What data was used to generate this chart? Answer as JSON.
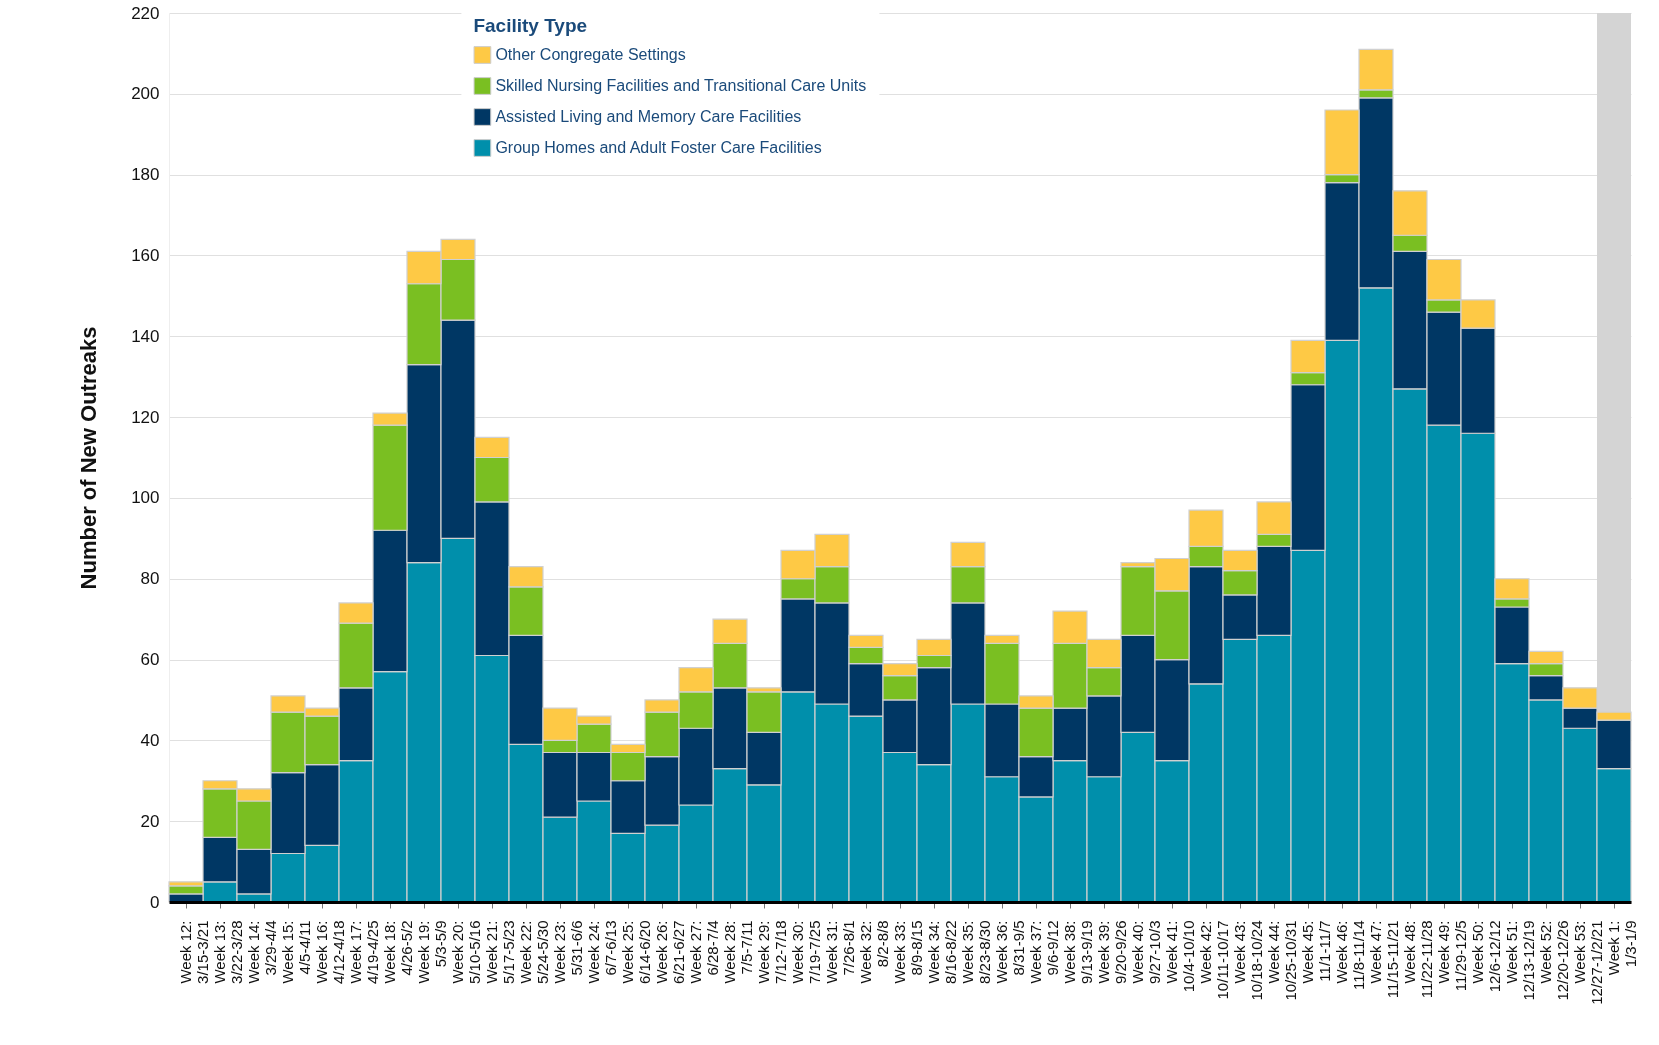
{
  "chart_data": {
    "type": "bar",
    "stacked": true,
    "ylabel": "Number of New Outreaks",
    "legend_title": "Facility Type",
    "categories": [
      "Week 12: 3/15-3/21",
      "Week 13: 3/22-3/28",
      "Week 14: 3/29-4/4",
      "Week 15: 4/5-4/11",
      "Week 16: 4/12-4/18",
      "Week 17: 4/19-4/25",
      "Week 18: 4/26-5/2",
      "Week 19: 5/3-5/9",
      "Week 20: 5/10-5/16",
      "Week 21: 5/17-5/23",
      "Week 22: 5/24-5/30",
      "Week 23: 5/31-6/6",
      "Week 24: 6/7-6/13",
      "Week 25: 6/14-6/20",
      "Week 26: 6/21-6/27",
      "Week 27: 6/28-7/4",
      "Week 28: 7/5-7/11",
      "Week 29: 7/12-7/18",
      "Week 30: 7/19-7/25",
      "Week 31: 7/26-8/1",
      "Week 32: 8/2-8/8",
      "Week 33: 8/9-8/15",
      "Week 34: 8/16-8/22",
      "Week 35: 8/23-8/30",
      "Week 36: 8/31-9/5",
      "Week 37: 9/6-9/12",
      "Week 38: 9/13-9/19",
      "Week 39: 9/20-9/26",
      "Week 40: 9/27-10/3",
      "Week 41: 10/4-10/10",
      "Week 42: 10/11-10/17",
      "Week 43: 10/18-10/24",
      "Week 44: 10/25-10/31",
      "Week 45: 11/1-11/7",
      "Week 46: 11/8-11/14",
      "Week 47: 11/15-11/21",
      "Week 48: 11/22-11/28",
      "Week 49: 11/29-12/5",
      "Week 50: 12/6-12/12",
      "Week 51: 12/13-12/19",
      "Week 52: 12/20-12/26",
      "Week 53: 12/27-1/2/21",
      "Week 1: 1/3-1/9"
    ],
    "series": [
      {
        "name": "Group Homes and Adult Foster Care Facilities",
        "color": "#008fab",
        "values": [
          0,
          5,
          2,
          12,
          14,
          35,
          57,
          84,
          90,
          61,
          39,
          21,
          25,
          17,
          19,
          24,
          33,
          29,
          52,
          49,
          46,
          37,
          34,
          49,
          31,
          26,
          35,
          31,
          42,
          35,
          54,
          65,
          66,
          87,
          139,
          152,
          127,
          118,
          116,
          59,
          50,
          43,
          33
        ]
      },
      {
        "name": "Assisted Living and Memory Care Facilities",
        "color": "#003764",
        "values": [
          2,
          11,
          11,
          20,
          20,
          18,
          35,
          49,
          54,
          38,
          27,
          16,
          12,
          13,
          17,
          19,
          20,
          13,
          23,
          25,
          13,
          13,
          24,
          25,
          18,
          10,
          13,
          20,
          24,
          25,
          29,
          11,
          22,
          41,
          39,
          47,
          34,
          28,
          26,
          14,
          6,
          5,
          12
        ]
      },
      {
        "name": "Skilled Nursing Facilities and Transitional Care Units",
        "color": "#7abf22",
        "values": [
          2,
          12,
          12,
          15,
          12,
          16,
          26,
          20,
          15,
          11,
          12,
          3,
          7,
          7,
          11,
          9,
          11,
          10,
          5,
          9,
          4,
          6,
          3,
          9,
          15,
          12,
          16,
          7,
          17,
          17,
          5,
          6,
          3,
          3,
          2,
          2,
          4,
          3,
          0,
          2,
          3,
          0,
          0
        ]
      },
      {
        "name": "Other Congregate Settings",
        "color": "#fec945",
        "values": [
          1,
          2,
          3,
          4,
          2,
          5,
          3,
          8,
          5,
          5,
          5,
          8,
          2,
          2,
          3,
          6,
          6,
          1,
          7,
          8,
          3,
          3,
          4,
          6,
          2,
          3,
          8,
          7,
          1,
          8,
          9,
          5,
          8,
          8,
          16,
          10,
          11,
          10,
          7,
          5,
          3,
          5,
          2
        ]
      }
    ],
    "ylim": [
      0,
      220
    ],
    "yticks": [
      0,
      20,
      40,
      60,
      80,
      100,
      120,
      140,
      160,
      180,
      200,
      220
    ],
    "grid": "y",
    "legend": "top",
    "bands": [
      {
        "axis": "x",
        "from": "Week 1: 1/3-1/9",
        "to": "Week 1: 1/3-1/9",
        "color": "#d4d4d4"
      }
    ]
  }
}
